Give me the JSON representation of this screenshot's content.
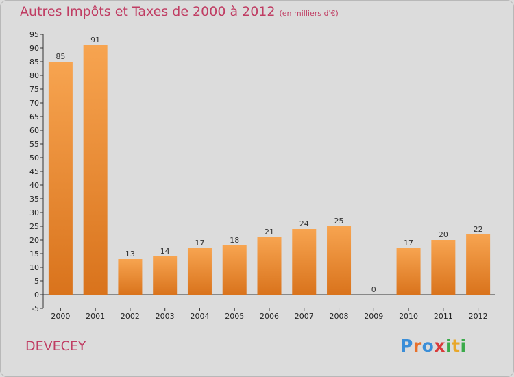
{
  "title": "Autres Impôts et Taxes de 2000 à 2012",
  "unit": "(en milliers d'€)",
  "commune": "DEVECEY",
  "logo": {
    "text": "Proxiti",
    "letters": [
      {
        "ch": "P",
        "color": "#3a8ed8"
      },
      {
        "ch": "r",
        "color": "#e8702a"
      },
      {
        "ch": "o",
        "color": "#3a8ed8"
      },
      {
        "ch": "x",
        "color": "#d93a3a"
      },
      {
        "ch": "i",
        "color": "#3aaa4a"
      },
      {
        "ch": "t",
        "color": "#e8a72a"
      },
      {
        "ch": "i",
        "color": "#3aaa4a"
      }
    ]
  },
  "chart_data": {
    "type": "bar",
    "categories": [
      "2000",
      "2001",
      "2002",
      "2003",
      "2004",
      "2005",
      "2006",
      "2007",
      "2008",
      "2009",
      "2010",
      "2011",
      "2012"
    ],
    "values": [
      85,
      91,
      13,
      14,
      17,
      18,
      21,
      24,
      25,
      0,
      17,
      20,
      22
    ],
    "data_labels": [
      "85",
      "91",
      "13",
      "14",
      "17",
      "18",
      "21",
      "24",
      "25",
      "0",
      "17",
      "20",
      "22"
    ],
    "ylim": [
      -5,
      95
    ],
    "yticks": [
      -5,
      0,
      5,
      10,
      15,
      20,
      25,
      30,
      35,
      40,
      45,
      50,
      55,
      60,
      65,
      70,
      75,
      80,
      85,
      90,
      95
    ],
    "grid": false,
    "bar_color_top": "#f7a450",
    "bar_color_bottom": "#d9731c",
    "legend": "none"
  }
}
